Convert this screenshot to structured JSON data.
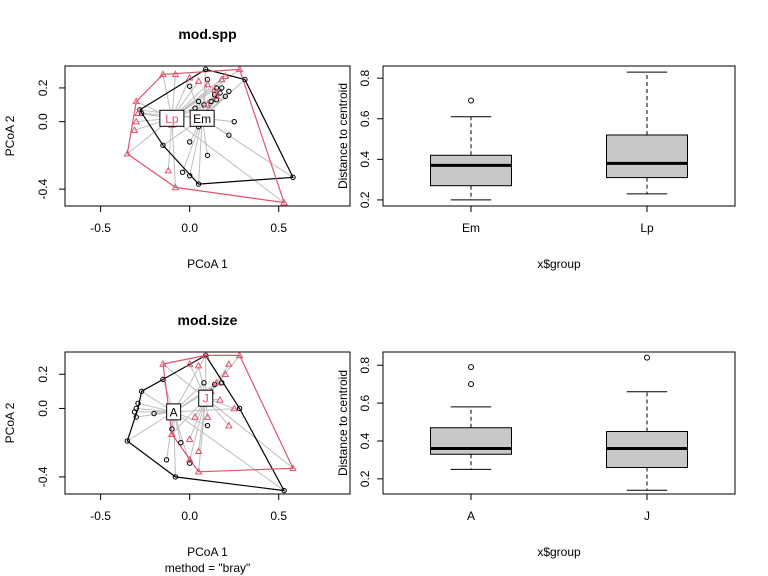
{
  "chart_data": [
    {
      "type": "scatter",
      "title": "mod.spp",
      "xlabel": "PCoA 1",
      "ylabel": "PCoA 2",
      "subtitle": "",
      "xlim": [
        -0.7,
        0.9
      ],
      "ylim": [
        -0.5,
        0.33
      ],
      "xticks": [
        "-0.5",
        "0.0",
        "0.5"
      ],
      "yticks": [
        "0.2",
        "0.0",
        "-0.4"
      ],
      "groups": [
        {
          "name": "Em",
          "color": "#000000",
          "marker": "circle",
          "centroid": [
            0.07,
            0.02
          ],
          "hull": [
            [
              -0.28,
              0.07
            ],
            [
              0.09,
              0.31
            ],
            [
              0.31,
              0.25
            ],
            [
              0.58,
              -0.33
            ],
            [
              0.05,
              -0.37
            ],
            [
              -0.15,
              -0.14
            ],
            [
              -0.28,
              0.07
            ]
          ],
          "points": [
            [
              -0.28,
              0.07
            ],
            [
              -0.27,
              0.05
            ],
            [
              -0.15,
              -0.14
            ],
            [
              0.09,
              0.31
            ],
            [
              0.31,
              0.25
            ],
            [
              0.58,
              -0.33
            ],
            [
              0.05,
              -0.37
            ],
            [
              -0.04,
              -0.3
            ],
            [
              0.0,
              -0.32
            ],
            [
              0.0,
              0.21
            ],
            [
              0.03,
              0.08
            ],
            [
              0.05,
              0.12
            ],
            [
              0.08,
              0.1
            ],
            [
              0.12,
              0.12
            ],
            [
              0.14,
              0.16
            ],
            [
              0.15,
              0.13
            ],
            [
              0.17,
              0.17
            ],
            [
              0.2,
              0.15
            ],
            [
              0.22,
              0.18
            ],
            [
              0.18,
              0.2
            ],
            [
              0.1,
              0.25
            ],
            [
              0.15,
              0.2
            ],
            [
              0.22,
              -0.08
            ],
            [
              0.25,
              0.0
            ],
            [
              0.1,
              -0.2
            ],
            [
              0.05,
              -0.03
            ],
            [
              0.0,
              -0.12
            ]
          ]
        },
        {
          "name": "Lp",
          "color": "#df536b",
          "marker": "triangle",
          "centroid": [
            -0.1,
            0.02
          ],
          "hull": [
            [
              -0.35,
              -0.19
            ],
            [
              -0.3,
              0.12
            ],
            [
              -0.15,
              0.28
            ],
            [
              0.28,
              0.31
            ],
            [
              0.53,
              -0.48
            ],
            [
              -0.08,
              -0.39
            ],
            [
              -0.35,
              -0.19
            ]
          ],
          "points": [
            [
              -0.35,
              -0.19
            ],
            [
              -0.3,
              0.0
            ],
            [
              -0.31,
              -0.05
            ],
            [
              -0.29,
              0.05
            ],
            [
              -0.3,
              0.12
            ],
            [
              -0.15,
              0.28
            ],
            [
              -0.08,
              0.28
            ],
            [
              -0.1,
              -0.02
            ],
            [
              -0.12,
              -0.29
            ],
            [
              -0.08,
              -0.39
            ],
            [
              0.28,
              0.31
            ],
            [
              0.53,
              -0.48
            ],
            [
              0.0,
              0.26
            ],
            [
              0.05,
              0.24
            ],
            [
              0.1,
              0.22
            ],
            [
              0.14,
              0.19
            ],
            [
              0.18,
              0.25
            ],
            [
              0.2,
              0.27
            ],
            [
              0.15,
              0.15
            ],
            [
              0.1,
              0.1
            ]
          ]
        }
      ]
    },
    {
      "type": "boxplot",
      "xlabel": "x$group",
      "ylabel": "Distance to centroid",
      "categories": [
        "Em",
        "Lp"
      ],
      "ylim": [
        0.17,
        0.86
      ],
      "yticks": [
        "0.2",
        "0.4",
        "0.6",
        "0.8"
      ],
      "box_color": "#c8c8c8",
      "boxes": [
        {
          "name": "Em",
          "whisker_low": 0.2,
          "q1": 0.27,
          "median": 0.37,
          "q3": 0.42,
          "whisker_high": 0.61,
          "outliers": [
            0.69
          ]
        },
        {
          "name": "Lp",
          "whisker_low": 0.23,
          "q1": 0.31,
          "median": 0.38,
          "q3": 0.52,
          "whisker_high": 0.83,
          "outliers": []
        }
      ]
    },
    {
      "type": "scatter",
      "title": "mod.size",
      "xlabel": "PCoA 1",
      "ylabel": "PCoA 2",
      "subtitle": "method = \"bray\"",
      "xlim": [
        -0.7,
        0.9
      ],
      "ylim": [
        -0.5,
        0.33
      ],
      "xticks": [
        "-0.5",
        "0.0",
        "0.5"
      ],
      "yticks": [
        "0.2",
        "0.0",
        "-0.4"
      ],
      "groups": [
        {
          "name": "A",
          "color": "#000000",
          "marker": "circle",
          "centroid": [
            -0.09,
            -0.02
          ],
          "hull": [
            [
              -0.35,
              -0.19
            ],
            [
              -0.29,
              0.0
            ],
            [
              -0.27,
              0.1
            ],
            [
              -0.15,
              0.17
            ],
            [
              0.09,
              0.31
            ],
            [
              0.28,
              0.0
            ],
            [
              0.53,
              -0.48
            ],
            [
              -0.08,
              -0.4
            ],
            [
              -0.35,
              -0.19
            ]
          ],
          "points": [
            [
              -0.35,
              -0.19
            ],
            [
              -0.3,
              0.0
            ],
            [
              -0.31,
              -0.02
            ],
            [
              -0.3,
              -0.05
            ],
            [
              -0.29,
              0.03
            ],
            [
              -0.27,
              0.1
            ],
            [
              -0.15,
              0.17
            ],
            [
              0.09,
              0.31
            ],
            [
              0.28,
              0.0
            ],
            [
              0.53,
              -0.48
            ],
            [
              -0.08,
              -0.4
            ],
            [
              -0.13,
              -0.3
            ],
            [
              -0.1,
              -0.12
            ],
            [
              -0.05,
              -0.2
            ],
            [
              0.0,
              -0.32
            ],
            [
              0.08,
              0.15
            ],
            [
              0.14,
              0.14
            ],
            [
              0.18,
              0.15
            ],
            [
              0.1,
              -0.1
            ],
            [
              -0.2,
              -0.03
            ]
          ]
        },
        {
          "name": "J",
          "color": "#df536b",
          "marker": "triangle",
          "centroid": [
            0.09,
            0.06
          ],
          "hull": [
            [
              -0.15,
              0.26
            ],
            [
              0.09,
              0.31
            ],
            [
              0.28,
              0.31
            ],
            [
              0.58,
              -0.35
            ],
            [
              0.05,
              -0.37
            ],
            [
              -0.1,
              -0.15
            ],
            [
              -0.15,
              0.26
            ]
          ],
          "points": [
            [
              -0.15,
              0.26
            ],
            [
              0.0,
              0.26
            ],
            [
              0.05,
              0.25
            ],
            [
              0.09,
              0.31
            ],
            [
              0.28,
              0.31
            ],
            [
              0.22,
              0.26
            ],
            [
              0.2,
              0.2
            ],
            [
              0.15,
              0.15
            ],
            [
              0.12,
              0.1
            ],
            [
              0.17,
              0.05
            ],
            [
              0.58,
              -0.35
            ],
            [
              0.05,
              -0.37
            ],
            [
              -0.1,
              -0.15
            ],
            [
              0.0,
              -0.18
            ],
            [
              0.05,
              -0.25
            ],
            [
              0.0,
              -0.3
            ],
            [
              0.22,
              -0.1
            ],
            [
              0.25,
              0.0
            ],
            [
              0.03,
              -0.05
            ],
            [
              0.1,
              -0.05
            ]
          ]
        }
      ]
    },
    {
      "type": "boxplot",
      "xlabel": "x$group",
      "ylabel": "Distance to centroid",
      "categories": [
        "A",
        "J"
      ],
      "ylim": [
        0.12,
        0.87
      ],
      "yticks": [
        "0.2",
        "0.4",
        "0.6",
        "0.8"
      ],
      "box_color": "#c8c8c8",
      "boxes": [
        {
          "name": "A",
          "whisker_low": 0.25,
          "q1": 0.33,
          "median": 0.36,
          "q3": 0.47,
          "whisker_high": 0.58,
          "outliers": [
            0.7,
            0.79
          ]
        },
        {
          "name": "J",
          "whisker_low": 0.14,
          "q1": 0.26,
          "median": 0.36,
          "q3": 0.45,
          "whisker_high": 0.66,
          "outliers": [
            0.84
          ]
        }
      ]
    }
  ]
}
